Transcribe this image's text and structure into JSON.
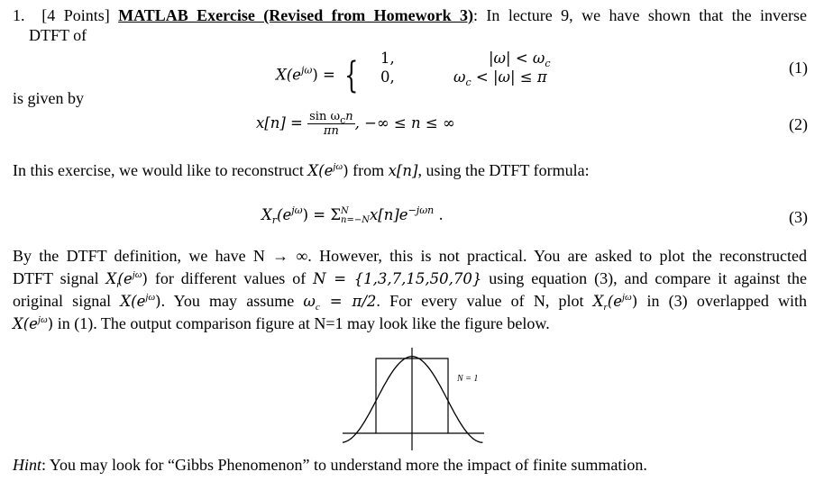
{
  "problem": {
    "number": "1.",
    "points": "[4 Points]",
    "title": "MATLAB Exercise (Revised from Homework 3)",
    "intro_rest": ": In lecture 9, we have shown that the inverse",
    "intro_line2": "DTFT of",
    "given_by": "is given by",
    "para1": "In this exercise, we would like to reconstruct",
    "para1_from": "from",
    "para1_end": ", using the DTFT formula:",
    "para2": [
      "By the DTFT definition, we have N → ∞. However, this is not practical. You are asked to plot the reconstructed",
      "DTFT signal",
      "for different values of",
      "using equation (3), and compare it against the",
      "original signal",
      ". You may assume",
      ". For every value of N, plot",
      "in (3) overlapped with",
      "in (1). The output comparison figure at N=1 may look like the figure below."
    ],
    "hint_label": "Hint",
    "hint_text": ": You may look for “Gibbs Phenomenon” to understand more the impact of finite summation."
  },
  "equations": {
    "eq1": {
      "lhs": "X(e",
      "sup": "jω",
      "lhs_end": ") =",
      "case1": "1,",
      "case2": "0,",
      "cond1": "|ω| < ω",
      "cond1_sub": "c",
      "cond2a": "ω",
      "cond2_sub": "c",
      "cond2b": " < |ω| ≤ π",
      "label": "(1)"
    },
    "eq2": {
      "lhs": "x[n] =",
      "num": "sin ω",
      "num_sub": "c",
      "num_end": "n",
      "den": "πn",
      "rest": ", −∞ ≤  n ≤ ∞",
      "label": "(2)"
    },
    "eq3": {
      "lhs": "X",
      "lhs_sub": "r",
      "lhs2": "(e",
      "sup": "jω",
      "lhs_end": ") = Σ",
      "sum_sup": "N",
      "sum_sub": "n=−N",
      "body": "x[n]e",
      "body_sup": "−jωn",
      "end": " .",
      "label": "(3)"
    },
    "inline": {
      "X": "X(e",
      "Xr": "X",
      "r": "r",
      "sup": "jω",
      "close": ")",
      "xn": "x[n]",
      "Nset": "N = {1,3,7,15,50,70}",
      "wc": "ω",
      "c": "c",
      "wc_val": " = π/2"
    }
  },
  "figure": {
    "label": "N = 1"
  }
}
